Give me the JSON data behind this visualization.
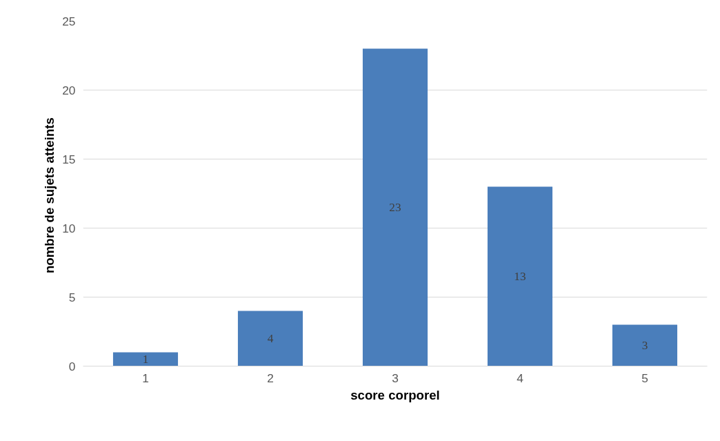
{
  "chart_data": {
    "type": "bar",
    "xlabel": "score corporel",
    "ylabel": "nombre  de sujets atteints",
    "categories": [
      "1",
      "2",
      "3",
      "4",
      "5"
    ],
    "values": [
      1,
      4,
      23,
      13,
      3
    ],
    "color": "#4a7ebb",
    "ylim": [
      0,
      25
    ],
    "yticks": [
      0,
      5,
      10,
      15,
      20,
      25
    ],
    "grid": "y",
    "data_labels": true
  }
}
